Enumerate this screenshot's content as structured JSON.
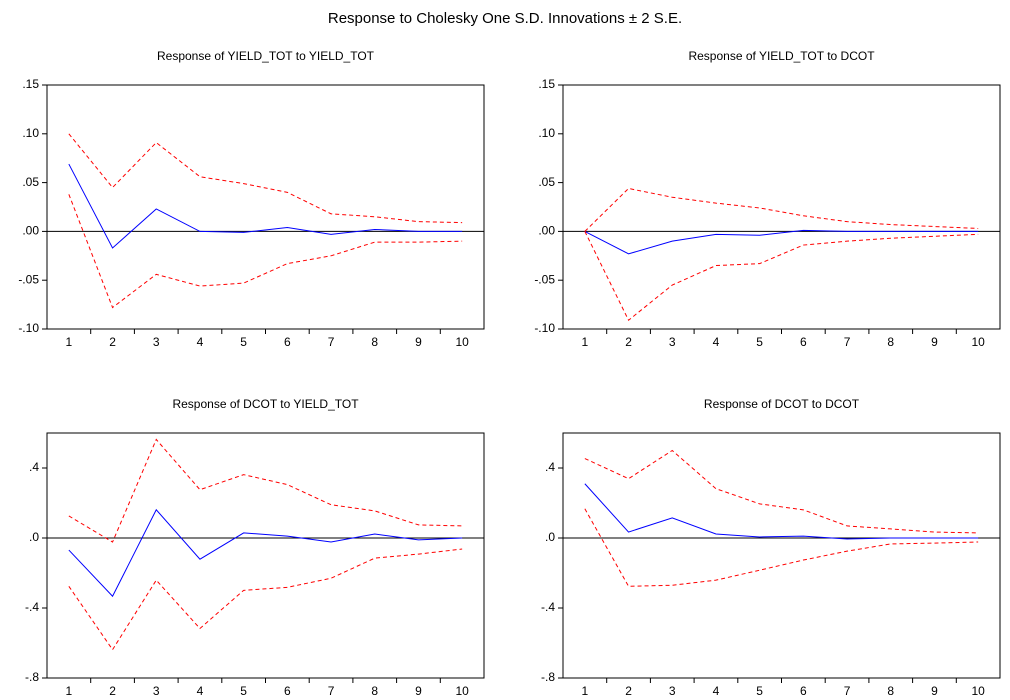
{
  "title": "Response to Cholesky One S.D. Innovations ± 2 S.E.",
  "chart_data": [
    {
      "type": "line",
      "title": "Response of YIELD_TOT to YIELD_TOT",
      "categories": [
        1,
        2,
        3,
        4,
        5,
        6,
        7,
        8,
        9,
        10
      ],
      "ylim": [
        -0.1,
        0.15
      ],
      "yticks": [
        {
          "value": -0.1,
          "label": "-.10"
        },
        {
          "value": -0.05,
          "label": "-.05"
        },
        {
          "value": 0,
          "label": ".00"
        },
        {
          "value": 0.05,
          "label": ".05"
        },
        {
          "value": 0.1,
          "label": ".10"
        },
        {
          "value": 0.15,
          "label": ".15"
        }
      ],
      "grid": false,
      "series": [
        {
          "color": "#0000ff",
          "line_style": "solid",
          "values": [
            0.069,
            -0.017,
            0.023,
            0.0,
            -0.001,
            0.004,
            -0.003,
            0.002,
            0.0,
            0.0
          ]
        },
        {
          "color": "#ff0000",
          "line_style": "dashed",
          "values": [
            0.1,
            0.045,
            0.091,
            0.056,
            0.049,
            0.04,
            0.018,
            0.015,
            0.01,
            0.009
          ]
        },
        {
          "color": "#ff0000",
          "line_style": "dashed",
          "values": [
            0.038,
            -0.078,
            -0.044,
            -0.056,
            -0.053,
            -0.033,
            -0.025,
            -0.011,
            -0.011,
            -0.01
          ]
        }
      ]
    },
    {
      "type": "line",
      "title": "Response of YIELD_TOT to DCOT",
      "categories": [
        1,
        2,
        3,
        4,
        5,
        6,
        7,
        8,
        9,
        10
      ],
      "ylim": [
        -0.1,
        0.15
      ],
      "yticks": [
        {
          "value": -0.1,
          "label": "-.10"
        },
        {
          "value": -0.05,
          "label": "-.05"
        },
        {
          "value": 0,
          "label": ".00"
        },
        {
          "value": 0.05,
          "label": ".05"
        },
        {
          "value": 0.1,
          "label": ".10"
        },
        {
          "value": 0.15,
          "label": ".15"
        }
      ],
      "grid": false,
      "series": [
        {
          "color": "#0000ff",
          "line_style": "solid",
          "values": [
            0.0,
            -0.023,
            -0.01,
            -0.003,
            -0.004,
            0.001,
            0.0,
            0.0,
            0.0,
            0.0
          ]
        },
        {
          "color": "#ff0000",
          "line_style": "dashed",
          "values": [
            0.0,
            0.044,
            0.035,
            0.029,
            0.024,
            0.016,
            0.01,
            0.007,
            0.005,
            0.003
          ]
        },
        {
          "color": "#ff0000",
          "line_style": "dashed",
          "values": [
            0.0,
            -0.091,
            -0.055,
            -0.035,
            -0.033,
            -0.014,
            -0.01,
            -0.007,
            -0.005,
            -0.003
          ]
        }
      ]
    },
    {
      "type": "line",
      "title": "Response of DCOT to YIELD_TOT",
      "categories": [
        1,
        2,
        3,
        4,
        5,
        6,
        7,
        8,
        9,
        10
      ],
      "ylim": [
        -0.8,
        0.6
      ],
      "yticks": [
        {
          "value": -0.8,
          "label": "-.8"
        },
        {
          "value": -0.4,
          "label": "-.4"
        },
        {
          "value": 0,
          "label": ".0"
        },
        {
          "value": 0.4,
          "label": ".4"
        }
      ],
      "grid": false,
      "series": [
        {
          "color": "#0000ff",
          "line_style": "solid",
          "values": [
            -0.069,
            -0.333,
            0.161,
            -0.121,
            0.029,
            0.011,
            -0.023,
            0.023,
            -0.011,
            0.0
          ]
        },
        {
          "color": "#ff0000",
          "line_style": "dashed",
          "values": [
            0.126,
            -0.023,
            0.563,
            0.276,
            0.362,
            0.305,
            0.19,
            0.155,
            0.075,
            0.069
          ]
        },
        {
          "color": "#ff0000",
          "line_style": "dashed",
          "values": [
            -0.276,
            -0.638,
            -0.241,
            -0.517,
            -0.299,
            -0.282,
            -0.23,
            -0.115,
            -0.092,
            -0.063
          ]
        }
      ]
    },
    {
      "type": "line",
      "title": "Response of DCOT to DCOT",
      "categories": [
        1,
        2,
        3,
        4,
        5,
        6,
        7,
        8,
        9,
        10
      ],
      "ylim": [
        -0.8,
        0.6
      ],
      "yticks": [
        {
          "value": -0.8,
          "label": "-.8"
        },
        {
          "value": -0.4,
          "label": "-.4"
        },
        {
          "value": 0,
          "label": ".0"
        },
        {
          "value": 0.4,
          "label": ".4"
        }
      ],
      "grid": false,
      "series": [
        {
          "color": "#0000ff",
          "line_style": "solid",
          "values": [
            0.31,
            0.034,
            0.115,
            0.023,
            0.006,
            0.011,
            -0.006,
            0.0,
            0.0,
            0.0
          ]
        },
        {
          "color": "#ff0000",
          "line_style": "dashed",
          "values": [
            0.454,
            0.339,
            0.5,
            0.282,
            0.195,
            0.161,
            0.069,
            0.052,
            0.034,
            0.029
          ]
        },
        {
          "color": "#ff0000",
          "line_style": "dashed",
          "values": [
            0.167,
            -0.276,
            -0.27,
            -0.241,
            -0.184,
            -0.126,
            -0.075,
            -0.034,
            -0.029,
            -0.023
          ]
        }
      ]
    }
  ]
}
